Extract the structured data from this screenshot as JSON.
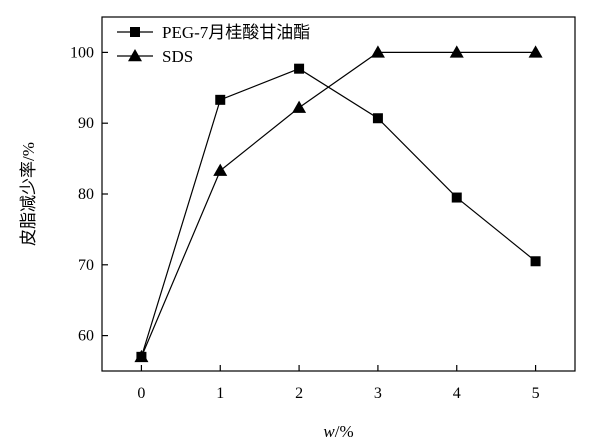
{
  "chart_data": {
    "type": "line",
    "xlabel": "w/%",
    "ylabel": "皮脂减少率/%",
    "xlim": [
      -0.5,
      5.5
    ],
    "ylim": [
      55,
      105
    ],
    "xticks": [
      0,
      1,
      2,
      3,
      4,
      5
    ],
    "yticks": [
      60,
      70,
      80,
      90,
      100
    ],
    "legend_position": "top-left",
    "grid": false,
    "series": [
      {
        "name": "PEG-7月桂酸甘油酯",
        "marker": "square",
        "color": "#000000",
        "x": [
          0,
          1,
          2,
          3,
          4,
          5
        ],
        "y": [
          57,
          93.3,
          97.7,
          90.7,
          79.5,
          70.5
        ]
      },
      {
        "name": "SDS",
        "marker": "triangle",
        "color": "#000000",
        "x": [
          0,
          1,
          2,
          3,
          4,
          5
        ],
        "y": [
          57,
          83.3,
          92.2,
          100,
          100,
          100
        ]
      }
    ]
  }
}
